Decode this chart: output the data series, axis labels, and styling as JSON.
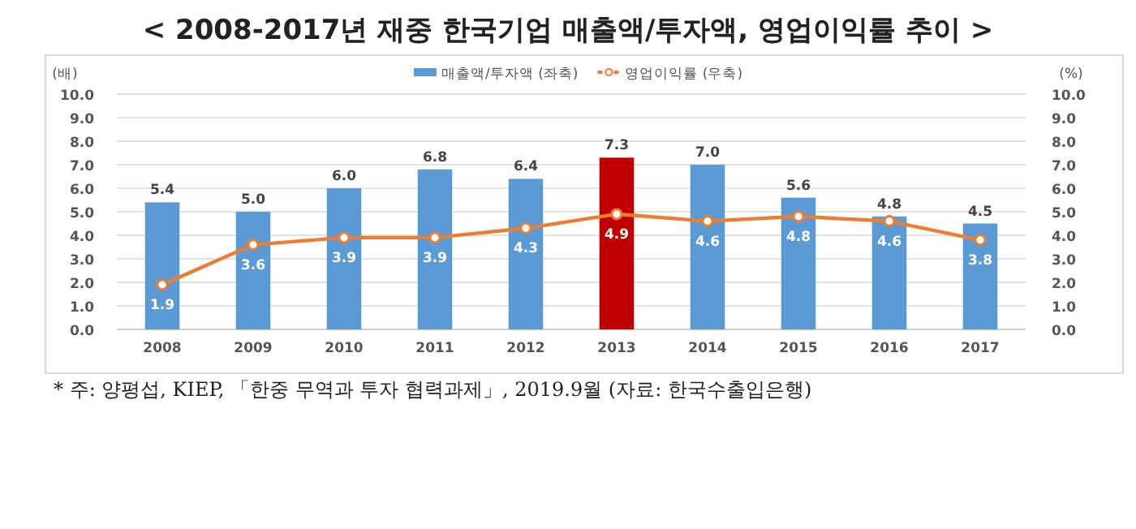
{
  "chart_data": {
    "type": "bar",
    "title": "< 2008-2017년 재중 한국기업 매출액/투자액, 영업이익률 추이 >",
    "ylabel": "(배)",
    "y2label": "(%)",
    "categories": [
      "2008",
      "2009",
      "2010",
      "2011",
      "2012",
      "2013",
      "2014",
      "2015",
      "2016",
      "2017"
    ],
    "series": [
      {
        "name": "매출액/투자액 (좌축)",
        "color": "#5b9bd5",
        "colors": [
          "#5b9bd5",
          "#5b9bd5",
          "#5b9bd5",
          "#5b9bd5",
          "#5b9bd5",
          "#c00000",
          "#5b9bd5",
          "#5b9bd5",
          "#5b9bd5",
          "#5b9bd5"
        ],
        "values": [
          5.4,
          5.0,
          6.0,
          6.8,
          6.4,
          7.3,
          7.0,
          5.6,
          4.8,
          4.5
        ],
        "value_labels": [
          "5.4",
          "5.0",
          "6.0",
          "6.8",
          "6.4",
          "7.3",
          "7.0",
          "5.6",
          "4.8",
          "4.5"
        ]
      },
      {
        "name": "영업이익률 (우축)",
        "type": "line",
        "axis": "y2",
        "color": "#ed7d31",
        "marker": "circle",
        "values": [
          1.9,
          3.6,
          3.9,
          3.9,
          4.3,
          4.9,
          4.6,
          4.8,
          4.6,
          3.8
        ],
        "value_labels": [
          "1.9",
          "3.6",
          "3.9",
          "3.9",
          "4.3",
          "4.9",
          "4.6",
          "4.8",
          "4.6",
          "3.8"
        ]
      }
    ],
    "ylim": [
      0,
      10
    ],
    "yticks": [
      {
        "value": 0,
        "label": "0.0"
      },
      {
        "value": 1,
        "label": "1.0"
      },
      {
        "value": 2,
        "label": "2.0"
      },
      {
        "value": 3,
        "label": "3.0"
      },
      {
        "value": 4,
        "label": "4.0"
      },
      {
        "value": 5,
        "label": "5.0"
      },
      {
        "value": 6,
        "label": "6.0"
      },
      {
        "value": 7,
        "label": "7.0"
      },
      {
        "value": 8,
        "label": "8.0"
      },
      {
        "value": 9,
        "label": "9.0"
      },
      {
        "value": 10,
        "label": "10.0"
      }
    ],
    "y2lim": [
      0,
      10
    ],
    "y2ticks": [
      {
        "value": 0,
        "label": "0.0"
      },
      {
        "value": 1,
        "label": "1.0"
      },
      {
        "value": 2,
        "label": "2.0"
      },
      {
        "value": 3,
        "label": "3.0"
      },
      {
        "value": 4,
        "label": "4.0"
      },
      {
        "value": 5,
        "label": "5.0"
      },
      {
        "value": 6,
        "label": "6.0"
      },
      {
        "value": 7,
        "label": "7.0"
      },
      {
        "value": 8,
        "label": "8.0"
      },
      {
        "value": 9,
        "label": "9.0"
      },
      {
        "value": 10,
        "label": "10.0"
      }
    ],
    "grid": "y",
    "legend": "top",
    "annotations": [
      "* 주: 양평섭, KIEP, 「한중 무역과 투자 협력과제」, 2019.9월 (자료: 한국수출입은행)"
    ]
  }
}
